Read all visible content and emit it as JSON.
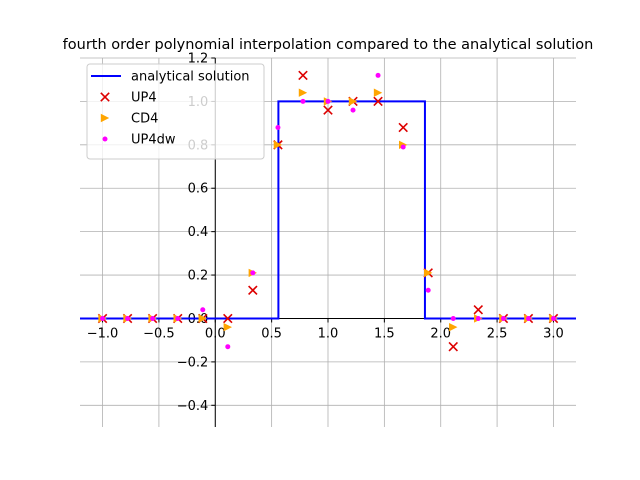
{
  "chart_data": {
    "type": "line",
    "title": "fourth order polynomial interpolation compared to the analytical solution",
    "xlabel": "",
    "ylabel": "",
    "xlim": [
      -1.2,
      3.2
    ],
    "ylim": [
      -0.5,
      1.2
    ],
    "xticks": [
      -1.0,
      -0.5,
      0.0,
      0.5,
      1.0,
      1.5,
      2.0,
      2.5,
      3.0
    ],
    "xtick_labels": [
      "−1.0",
      "−0.5",
      "0.0",
      "0.5",
      "1.0",
      "1.5",
      "2.0",
      "2.5",
      "3.0"
    ],
    "yticks": [
      -0.4,
      -0.2,
      0.0,
      0.2,
      0.4,
      0.6,
      0.8,
      1.0,
      1.2
    ],
    "ytick_labels": [
      "−0.4",
      "−0.2",
      "0.0",
      "0.2",
      "0.4",
      "0.6",
      "0.8",
      "1.0",
      "1.2"
    ],
    "grid": true,
    "legend_position": "top-left",
    "series": [
      {
        "name": "analytical solution",
        "kind": "line",
        "color": "#0000ff",
        "x": [
          -1.2,
          0.56,
          0.56,
          1.86,
          1.86,
          3.2
        ],
        "y": [
          0.0,
          0.0,
          1.0,
          1.0,
          0.0,
          0.0
        ]
      },
      {
        "name": "UP4",
        "kind": "marker-x",
        "color": "#dd0000",
        "x": [
          -1.0,
          -0.778,
          -0.556,
          -0.333,
          -0.111,
          0.111,
          0.333,
          0.556,
          0.778,
          1.0,
          1.222,
          1.444,
          1.667,
          1.889,
          2.111,
          2.333,
          2.556,
          2.778,
          3.0
        ],
        "y": [
          0.0,
          0.0,
          0.0,
          0.0,
          0.0,
          0.0,
          0.13,
          0.8,
          1.12,
          0.96,
          1.0,
          1.0,
          0.88,
          0.21,
          -0.13,
          0.04,
          0.0,
          0.0,
          0.0
        ]
      },
      {
        "name": "CD4",
        "kind": "marker-triangle-right",
        "color": "#ffa500",
        "x": [
          -1.0,
          -0.778,
          -0.556,
          -0.333,
          -0.111,
          0.111,
          0.333,
          0.556,
          0.778,
          1.0,
          1.222,
          1.444,
          1.667,
          1.889,
          2.111,
          2.333,
          2.556,
          2.778,
          3.0
        ],
        "y": [
          0.0,
          0.0,
          0.0,
          0.0,
          0.0,
          -0.04,
          0.21,
          0.8,
          1.04,
          1.0,
          1.0,
          1.04,
          0.8,
          0.21,
          -0.04,
          0.0,
          0.0,
          0.0,
          0.0
        ]
      },
      {
        "name": "UP4dw",
        "kind": "marker-dot",
        "color": "#ff00ff",
        "x": [
          -1.0,
          -0.778,
          -0.556,
          -0.333,
          -0.111,
          0.111,
          0.333,
          0.556,
          0.778,
          1.0,
          1.222,
          1.444,
          1.667,
          1.889,
          2.111,
          2.333,
          2.556,
          2.778,
          3.0
        ],
        "y": [
          0.0,
          0.0,
          0.0,
          0.0,
          0.04,
          -0.13,
          0.21,
          0.88,
          1.0,
          1.0,
          0.96,
          1.12,
          0.79,
          0.13,
          0.0,
          0.0,
          0.0,
          0.0,
          0.0
        ]
      }
    ]
  }
}
